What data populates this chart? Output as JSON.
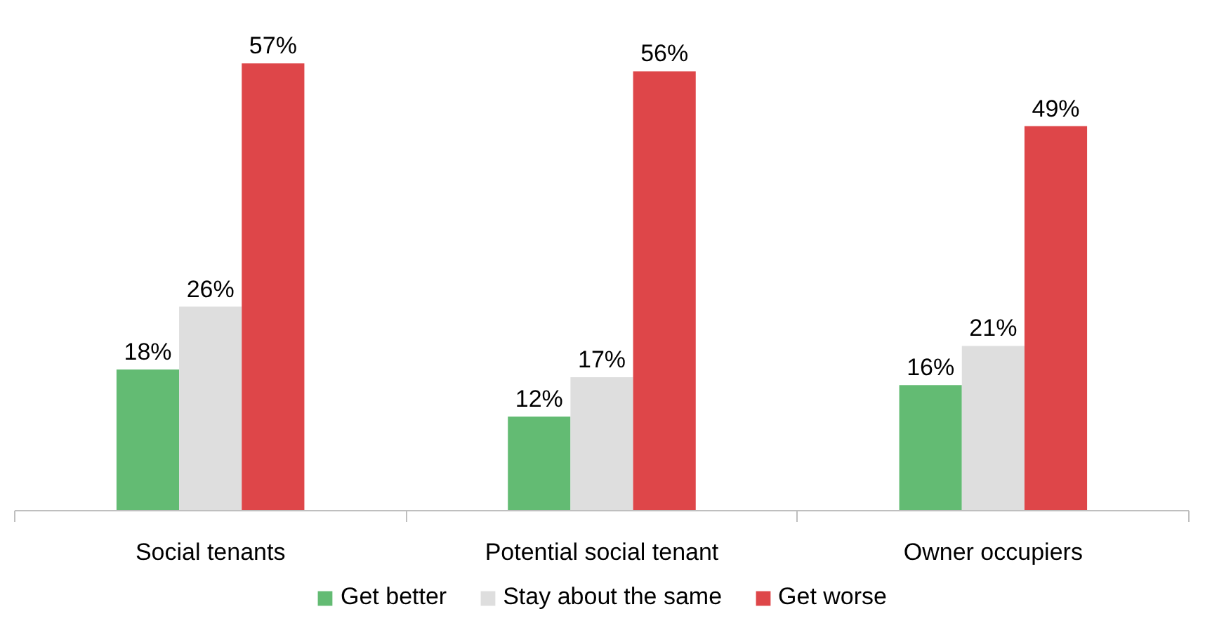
{
  "chart_data": {
    "type": "bar",
    "categories": [
      "Social tenants",
      "Potential social tenant",
      "Owner occupiers"
    ],
    "series": [
      {
        "name": "Get better",
        "color": "#63bb73",
        "values": [
          18,
          12,
          16
        ],
        "value_labels": [
          "18%",
          "12%",
          "16%"
        ]
      },
      {
        "name": "Stay about the same",
        "color": "#dedede",
        "values": [
          26,
          17,
          21
        ],
        "value_labels": [
          "26%",
          "17%",
          "21%"
        ]
      },
      {
        "name": "Get worse",
        "color": "#de4649",
        "values": [
          57,
          56,
          49
        ],
        "value_labels": [
          "57%",
          "56%",
          "49%"
        ]
      }
    ],
    "legend": "bottom",
    "grid": false
  }
}
